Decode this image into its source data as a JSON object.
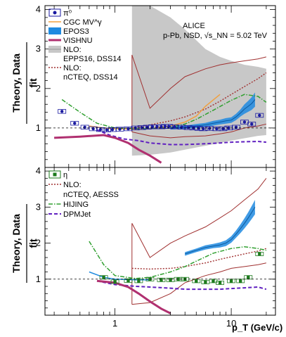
{
  "chart_data": [
    {
      "type": "line",
      "panel": "top",
      "ylabel_top": "Theory, Data",
      "ylabel_bottom": "fit",
      "xlabel": "p_T (GeV/c)",
      "xscale": "log",
      "xlim": [
        0.25,
        24
      ],
      "ylim": [
        0,
        4.1
      ],
      "yticks": [
        "1",
        "2",
        "3",
        "4"
      ],
      "header": {
        "line1": "ALICE",
        "line2": "p-Pb, NSD, √s_NN = 5.02 TeV"
      },
      "legend": [
        {
          "label": "π⁰",
          "kind": "data"
        },
        {
          "label": "CGC MV^γ",
          "kind": "line"
        },
        {
          "label": "EPOS3",
          "kind": "band"
        },
        {
          "label": "VISHNU",
          "kind": "thick"
        },
        {
          "label": "NLO:",
          "kind": "grayband"
        },
        {
          "label": "EPPS16, DSS14",
          "kind": "text"
        },
        {
          "label": "NLO:",
          "kind": "dotted"
        },
        {
          "label": "nCTEQ, DSS14",
          "kind": "text"
        }
      ],
      "colors": {
        "data": "#1a1aa0",
        "cgc": "#f0a040",
        "epos": "#1e8ae0",
        "vishnu": "#b03070",
        "nlo_band": "#c8c8c8",
        "nlo_dotted": "#a03030",
        "hijing": "#30a030",
        "dpmjet": "#6020c0"
      },
      "series": [
        {
          "name": "π⁰",
          "x": [
            0.35,
            0.45,
            0.55,
            0.65,
            0.75,
            0.85,
            0.95,
            1.1,
            1.3,
            1.5,
            1.7,
            1.9,
            2.1,
            2.3,
            2.5,
            2.7,
            2.9,
            3.25,
            3.75,
            4.25,
            4.75,
            5.25,
            5.75,
            6.5,
            7.5,
            8.5,
            9.5,
            11,
            13,
            15,
            17.5
          ],
          "y": [
            1.42,
            1.12,
            1.02,
            0.98,
            0.96,
            0.95,
            0.96,
            0.97,
            0.98,
            1.0,
            1.01,
            1.02,
            1.03,
            1.03,
            1.03,
            1.04,
            1.04,
            1.03,
            1.02,
            1.01,
            1.0,
            0.99,
            0.98,
            0.99,
            0.98,
            0.98,
            1.0,
            1.02,
            1.15,
            1.1,
            1.32
          ]
        },
        {
          "name": "CGC MV^γ",
          "x": [
            0.6,
            0.8,
            1.0,
            1.5,
            2.0,
            3.0,
            4.0,
            5.0,
            6.0,
            8.0
          ],
          "y": [
            1.05,
            1.0,
            0.98,
            0.97,
            0.98,
            1.05,
            1.15,
            1.3,
            1.55,
            1.85
          ]
        },
        {
          "name": "HIJING",
          "x": [
            0.35,
            0.5,
            0.7,
            1.0,
            1.5,
            2.0,
            3.0,
            4.0,
            5.0,
            7.0,
            10.0,
            13.0,
            17.0,
            20.0
          ],
          "y": [
            1.72,
            1.4,
            1.12,
            1.0,
            0.98,
            0.98,
            1.02,
            1.1,
            1.22,
            1.45,
            1.7,
            1.85,
            1.8,
            1.65
          ]
        },
        {
          "name": "DPMJet",
          "x": [
            0.7,
            0.9,
            1.2,
            1.6,
            2.0,
            3.0,
            4.0,
            6.0,
            8.0,
            10.0,
            13.0,
            17.0,
            20.0
          ],
          "y": [
            0.95,
            0.82,
            0.72,
            0.68,
            0.62,
            0.58,
            0.58,
            0.6,
            0.62,
            0.64,
            0.65,
            0.66,
            0.64
          ]
        },
        {
          "name": "VISHNU",
          "x": [
            0.3,
            0.5,
            0.8,
            1.0,
            1.3,
            1.6,
            2.0,
            2.5
          ],
          "y": [
            0.75,
            0.78,
            0.82,
            0.75,
            0.62,
            0.45,
            0.3,
            0.12
          ]
        },
        {
          "name": "nCTEQ, DSS14",
          "x": [
            1.4,
            2.0,
            3.0,
            4.0,
            6.0,
            8.0,
            10.0,
            13.0,
            17.0,
            20.0
          ],
          "y": [
            1.0,
            1.08,
            1.18,
            1.28,
            1.48,
            1.68,
            1.85,
            2.05,
            2.25,
            2.4
          ]
        },
        {
          "name": "EPOS3",
          "x": [
            3.0,
            4.0,
            5.0,
            6.0,
            7.0,
            8.0,
            9.0,
            10.0,
            11.0,
            12.0,
            13.0,
            14.0,
            15.0,
            16.0
          ],
          "y": [
            1.0,
            1.02,
            1.05,
            1.08,
            1.12,
            1.15,
            1.18,
            1.2,
            1.28,
            1.38,
            1.48,
            1.55,
            1.62,
            1.72
          ],
          "width": [
            0.04,
            0.04,
            0.05,
            0.05,
            0.06,
            0.06,
            0.07,
            0.07,
            0.08,
            0.09,
            0.12,
            0.14,
            0.16,
            0.18
          ]
        },
        {
          "name": "EPPS16, DSS14",
          "x": [
            1.4,
            2.0,
            3.0,
            4.0,
            6.0,
            8.0,
            10.0,
            13.0,
            17.0,
            20.0
          ],
          "y_low": [
            0.3,
            0.32,
            0.38,
            0.45,
            0.55,
            0.62,
            0.68,
            0.74,
            0.8,
            0.82
          ],
          "y_high": [
            4.1,
            4.1,
            3.8,
            3.5,
            3.0,
            2.8,
            2.7,
            2.6,
            2.55,
            2.5
          ]
        },
        {
          "name": "brown envelope",
          "x": [
            1.4,
            2.0,
            3.0,
            4.0,
            6.0,
            8.0,
            10.0,
            13.0,
            17.0,
            20.0
          ],
          "y_low": [
            0.9,
            0.8,
            0.75,
            0.78,
            0.8,
            0.85,
            0.9,
            1.0,
            1.05,
            1.1
          ],
          "y_high": [
            2.85,
            1.5,
            2.0,
            2.3,
            2.5,
            2.6,
            2.65,
            2.7,
            2.75,
            2.8
          ]
        }
      ]
    },
    {
      "type": "line",
      "panel": "bottom",
      "ylabel_top": "Theory, Data",
      "ylabel_bottom": "fit",
      "xlabel": "p_T (GeV/c)",
      "xscale": "log",
      "xlim": [
        0.25,
        24
      ],
      "ylim": [
        0,
        4.1
      ],
      "yticks": [
        "1",
        "2",
        "3",
        "4"
      ],
      "xticks": [
        "1",
        "10"
      ],
      "legend": [
        {
          "label": "η",
          "kind": "data"
        },
        {
          "label": "NLO:",
          "kind": "dotted"
        },
        {
          "label": "nCTEQ, AESSS",
          "kind": "text"
        },
        {
          "label": "HIJING",
          "kind": "dashdot"
        },
        {
          "label": "DPMJet",
          "kind": "dashed"
        }
      ],
      "series": [
        {
          "name": "η",
          "x": [
            0.8,
            1.0,
            1.3,
            1.6,
            2.0,
            2.5,
            3.0,
            3.5,
            4.0,
            5.0,
            6.0,
            7.0,
            8.0,
            10.0,
            12.0,
            14.0,
            17.5
          ],
          "y": [
            1.05,
            0.93,
            0.96,
            0.95,
            1.0,
            0.98,
            0.98,
            1.0,
            1.0,
            0.95,
            0.92,
            0.95,
            0.9,
            0.95,
            0.95,
            1.05,
            1.7
          ]
        },
        {
          "name": "HIJING",
          "x": [
            0.6,
            0.8,
            1.0,
            1.5,
            2.0,
            3.0,
            4.0,
            5.0,
            7.0,
            10.0,
            13.0,
            17.0,
            20.0
          ],
          "y": [
            2.05,
            1.4,
            1.1,
            1.02,
            1.05,
            1.2,
            1.35,
            1.5,
            1.72,
            1.85,
            1.9,
            1.85,
            1.8
          ]
        },
        {
          "name": "DPMJet",
          "x": [
            0.7,
            1.0,
            1.5,
            2.0,
            3.0,
            4.0,
            6.0,
            8.0,
            10.0,
            13.0,
            17.0,
            20.0
          ],
          "y": [
            0.95,
            0.85,
            0.8,
            0.78,
            0.75,
            0.72,
            0.72,
            0.72,
            0.74,
            0.76,
            0.78,
            0.72
          ]
        },
        {
          "name": "VISHNU",
          "x": [
            0.7,
            1.0,
            1.3,
            1.6,
            2.0,
            2.5,
            3.0
          ],
          "y": [
            0.95,
            0.9,
            0.78,
            0.6,
            0.38,
            0.18,
            0.05
          ]
        },
        {
          "name": "CGC",
          "x": [
            0.6,
            0.8,
            1.0,
            1.5,
            2.0
          ],
          "y": [
            1.2,
            1.05,
            1.0,
            0.98,
            0.98
          ]
        },
        {
          "name": "nCTEQ, AESSS",
          "x": [
            1.4,
            2.0,
            3.0,
            4.0,
            6.0,
            8.0,
            10.0,
            13.0,
            17.0,
            20.0
          ],
          "y": [
            1.3,
            1.28,
            1.3,
            1.35,
            1.45,
            1.55,
            1.62,
            1.7,
            1.78,
            1.85
          ]
        },
        {
          "name": "EPOS3",
          "x": [
            4.0,
            5.0,
            6.0,
            7.0,
            8.0,
            9.0,
            10.0,
            11.0,
            12.0,
            13.0,
            14.0,
            15.0,
            16.0
          ],
          "y": [
            1.7,
            1.8,
            1.88,
            1.92,
            1.95,
            2.0,
            2.1,
            2.25,
            2.4,
            2.55,
            2.7,
            2.85,
            3.0
          ],
          "width": [
            0.05,
            0.05,
            0.06,
            0.06,
            0.07,
            0.08,
            0.09,
            0.1,
            0.12,
            0.14,
            0.16,
            0.18,
            0.2
          ]
        },
        {
          "name": "brown envelope",
          "x": [
            1.4,
            2.0,
            3.0,
            4.0,
            6.0,
            8.0,
            10.0,
            13.0,
            17.0,
            20.0
          ],
          "y_low": [
            0.3,
            0.35,
            0.6,
            0.9,
            1.1,
            1.2,
            1.3,
            1.35,
            1.4,
            1.45
          ],
          "y_high": [
            2.55,
            1.6,
            2.0,
            2.2,
            2.45,
            2.7,
            2.9,
            3.2,
            3.5,
            3.8
          ]
        }
      ]
    }
  ]
}
